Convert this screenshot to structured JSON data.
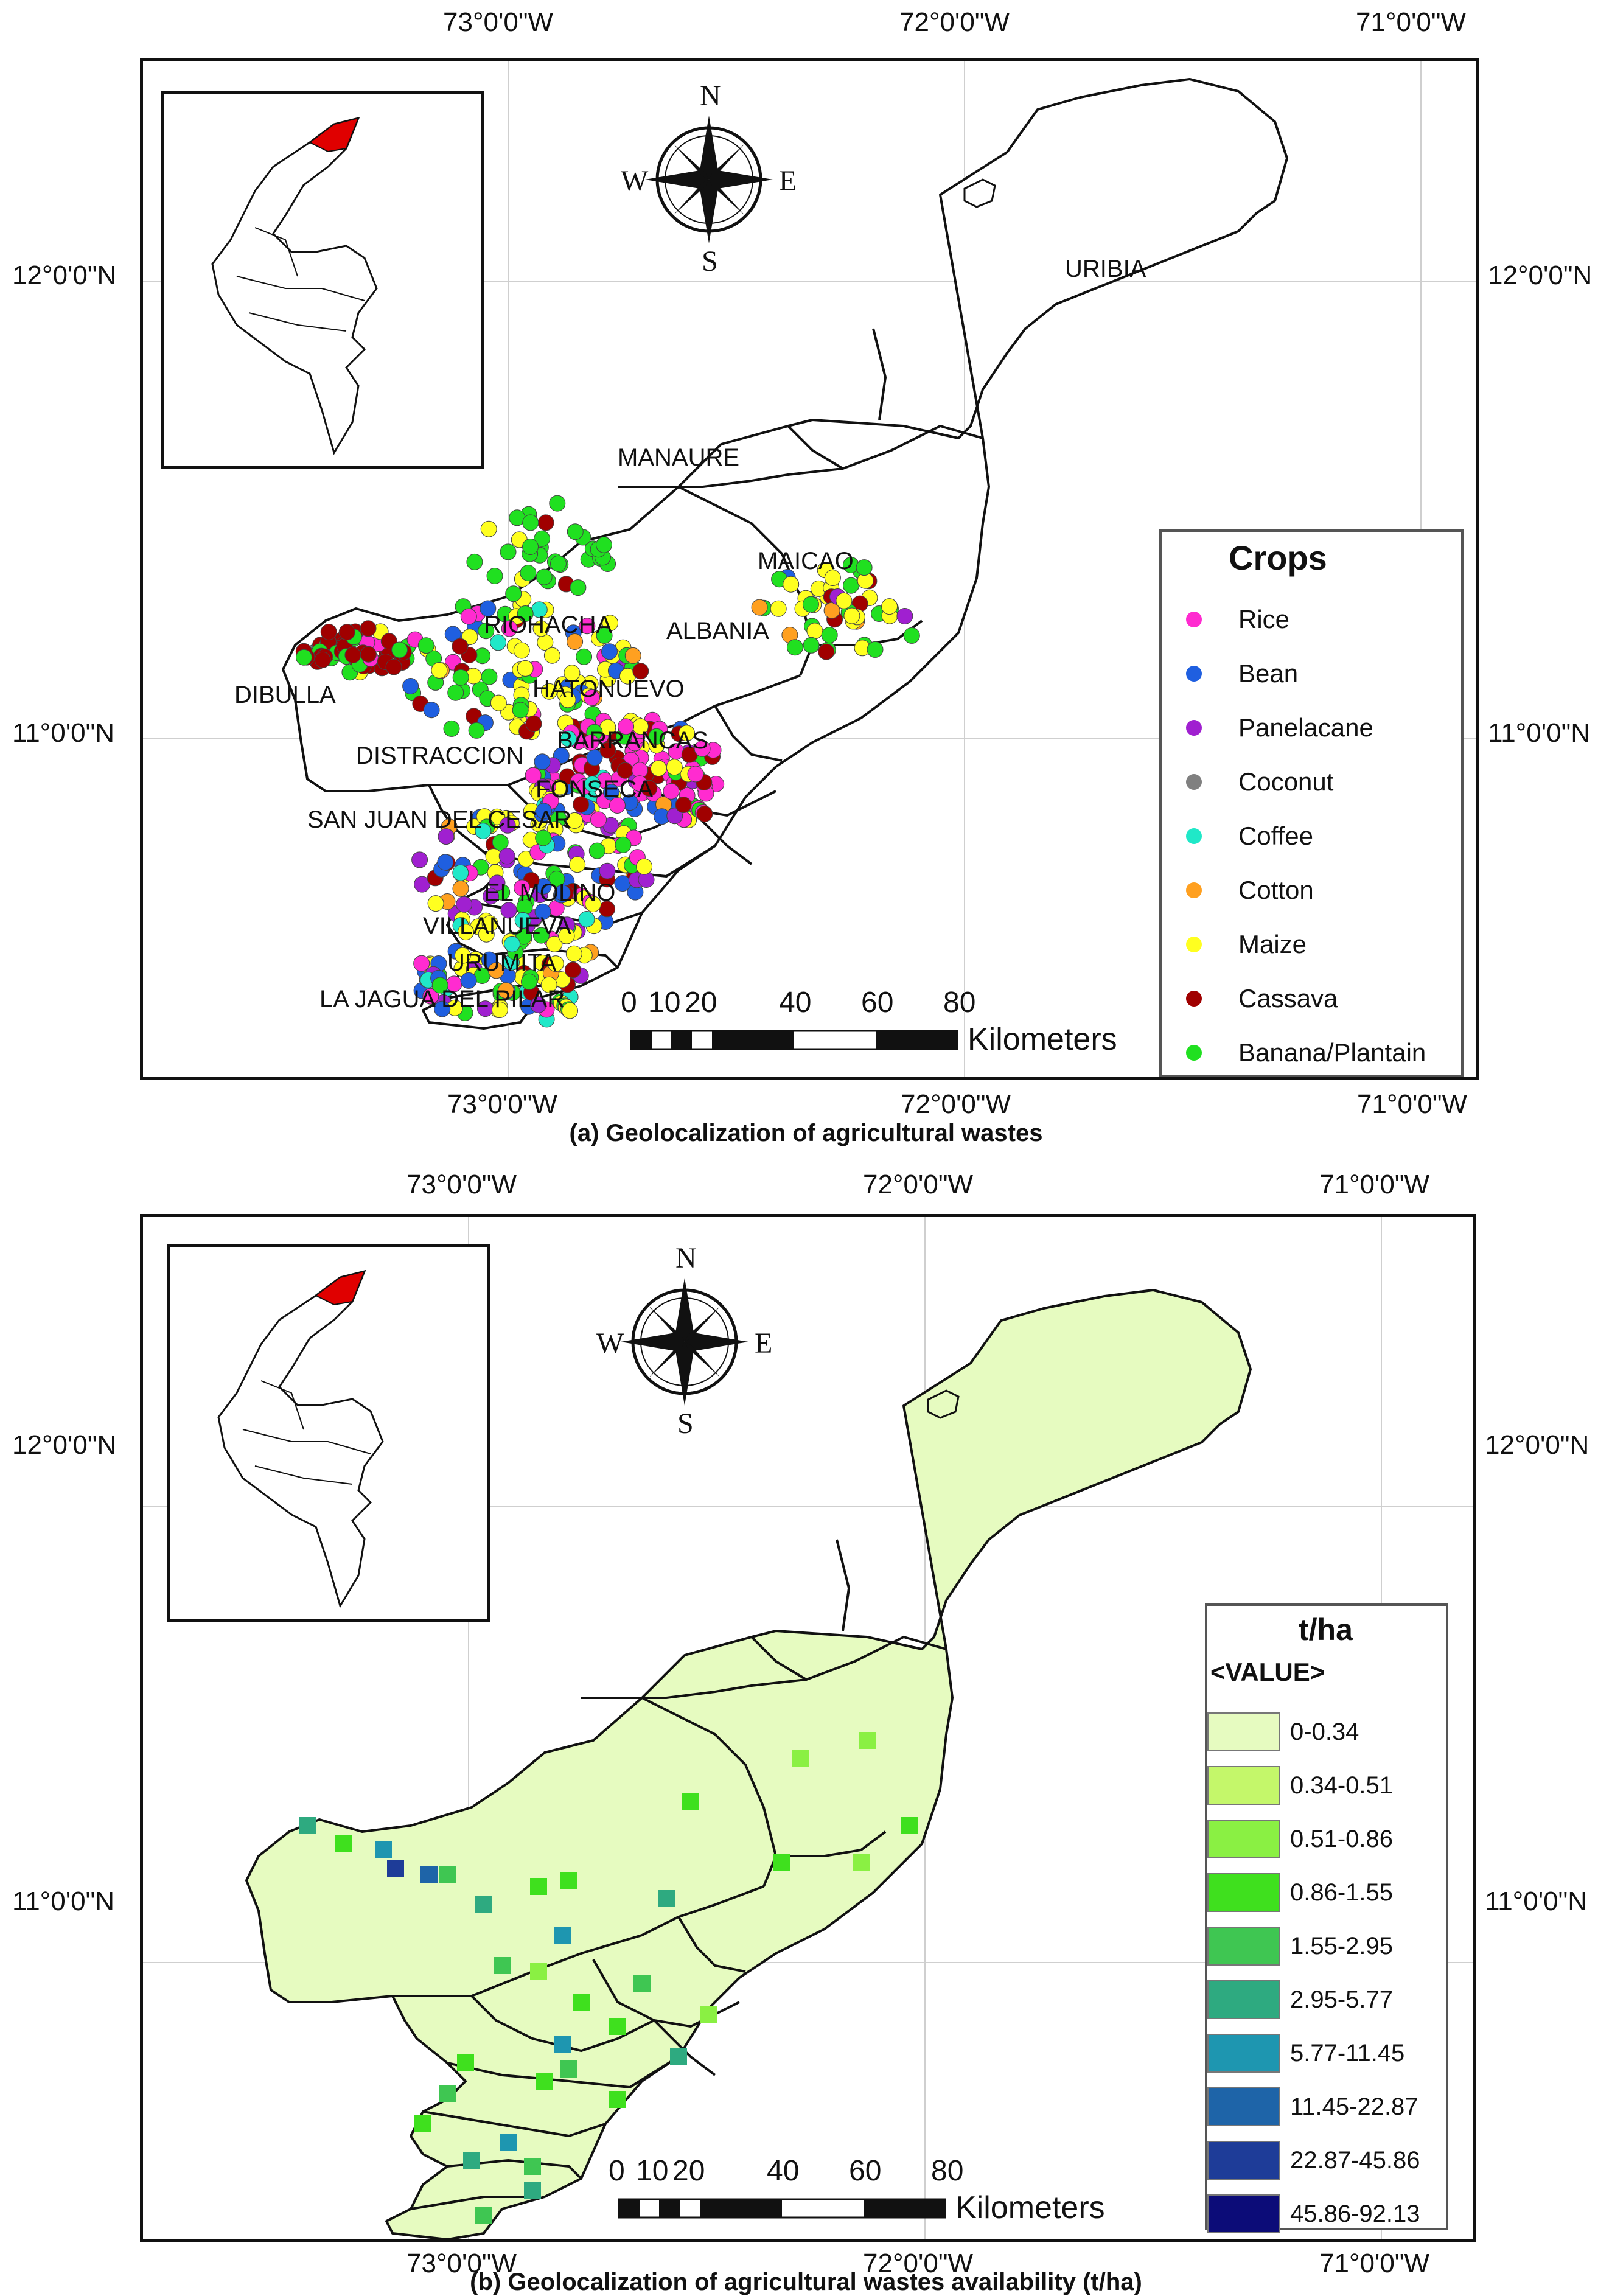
{
  "panel_a": {
    "caption": "(a) Geolocalization of agricultural wastes",
    "top_lon_labels": [
      "73°0'0\"W",
      "72°0'0\"W",
      "71°0'0\"W"
    ],
    "bottom_lon_labels": [
      "73°0'0\"W",
      "72°0'0\"W",
      "71°0'0\"W"
    ],
    "lat_labels": [
      "12°0'0\"N",
      "11°0'0\"N"
    ],
    "municipalities": [
      "URIBIA",
      "MANAURE",
      "MAICAO",
      "RIOHACHA",
      "ALBANIA",
      "DIBULLA",
      "HATONUEVO",
      "BARRANCAS",
      "DISTRACCION",
      "FONSECA",
      "SAN JUAN DEL CESAR",
      "EL MOLINO",
      "VILLANUEVA",
      "URUMITA",
      "LA JAGUA DEL PILAR"
    ],
    "compass": {
      "n": "N",
      "s": "S",
      "e": "E",
      "w": "W"
    },
    "scale": {
      "ticks": [
        "0",
        "10",
        "20",
        "40",
        "60",
        "80"
      ],
      "unit": "Kilometers"
    },
    "legend": {
      "title": "Crops",
      "items": [
        {
          "label": "Rice",
          "color": "#ff2bd0"
        },
        {
          "label": "Bean",
          "color": "#1f5fe0"
        },
        {
          "label": "Panelacane",
          "color": "#a020d0"
        },
        {
          "label": "Coconut",
          "color": "#808080"
        },
        {
          "label": "Coffee",
          "color": "#20e8c8"
        },
        {
          "label": "Cotton",
          "color": "#ffa020"
        },
        {
          "label": "Maize",
          "color": "#ffff20"
        },
        {
          "label": "Cassava",
          "color": "#a00000"
        },
        {
          "label": "Banana/Plantain",
          "color": "#20e020"
        }
      ]
    }
  },
  "panel_b": {
    "caption": "(b) Geolocalization of agricultural wastes availability (t/ha)",
    "top_lon_labels": [
      "73°0'0\"W",
      "72°0'0\"W",
      "71°0'0\"W"
    ],
    "bottom_lon_labels": [
      "73°0'0\"W",
      "72°0'0\"W",
      "71°0'0\"W"
    ],
    "lat_labels": [
      "12°0'0\"N",
      "11°0'0\"N"
    ],
    "compass": {
      "n": "N",
      "s": "S",
      "e": "E",
      "w": "W"
    },
    "scale": {
      "ticks": [
        "0",
        "10",
        "20",
        "40",
        "60",
        "80"
      ],
      "unit": "Kilometers"
    },
    "legend": {
      "title": "t/ha",
      "subtitle": "<VALUE>",
      "classes": [
        {
          "label": "0-0.34",
          "color": "#e6fbc0"
        },
        {
          "label": "0.34-0.51",
          "color": "#c4f76a"
        },
        {
          "label": "0.51-0.86",
          "color": "#8af043"
        },
        {
          "label": "0.86-1.55",
          "color": "#3fe01e"
        },
        {
          "label": "1.55-2.95",
          "color": "#3fc652"
        },
        {
          "label": "2.95-5.77",
          "color": "#2eaa80"
        },
        {
          "label": "5.77-11.45",
          "color": "#1e96b0"
        },
        {
          "label": "11.45-22.87",
          "color": "#1e64a8"
        },
        {
          "label": "22.87-45.86",
          "color": "#1e3c98"
        },
        {
          "label": "45.86-92.13",
          "color": "#0c0c78"
        }
      ]
    }
  }
}
